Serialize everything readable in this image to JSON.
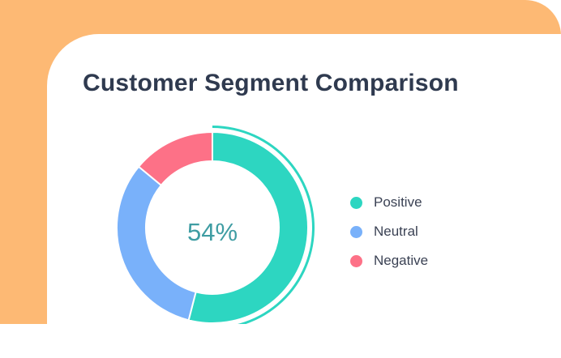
{
  "chart_data": {
    "type": "pie",
    "title": "Customer Segment Comparison",
    "center_label": "54%",
    "categories": [
      "Positive",
      "Neutral",
      "Negative"
    ],
    "values": [
      54,
      32,
      14
    ],
    "colors": [
      "#2dd6c1",
      "#79b1fa",
      "#fd7187"
    ],
    "highlight": "Positive",
    "legend_position": "right"
  },
  "backdrop_color": "#fdb974"
}
